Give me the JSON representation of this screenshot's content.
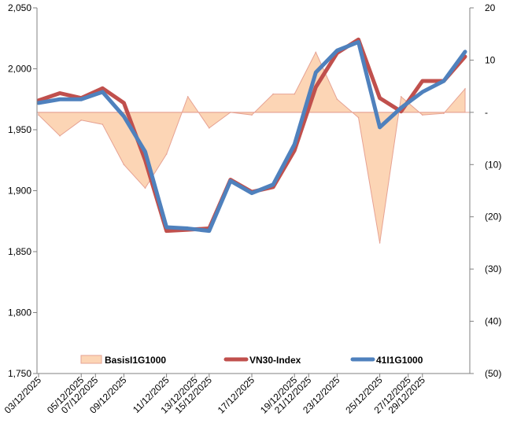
{
  "chart_data": {
    "type": "line",
    "x": [
      "03/12/2025",
      "04/12/2025",
      "05/12/2025",
      "08/12/2025",
      "09/12/2025",
      "10/12/2025",
      "11/12/2025",
      "12/12/2025",
      "15/12/2025",
      "16/12/2025",
      "17/12/2025",
      "18/12/2025",
      "19/12/2025",
      "22/12/2025",
      "23/12/2025",
      "24/12/2025",
      "25/12/2025",
      "26/12/2025",
      "29/12/2025",
      "30/12/2025",
      "31/12/2025"
    ],
    "x_ticks": [
      "03/12/2025",
      "05/12/2025",
      "07/12/2025",
      "09/12/2025",
      "11/12/2025",
      "13/12/2025",
      "15/12/2025",
      "17/12/2025",
      "19/12/2025",
      "21/12/2025",
      "23/12/2025",
      "25/12/2025",
      "27/12/2025",
      "29/12/2025"
    ],
    "y_left": {
      "ylim": [
        1750,
        2050
      ],
      "ticks": [
        1750,
        1800,
        1850,
        1900,
        1950,
        2000,
        2050
      ],
      "tick_labels": [
        "1,750",
        "1,800",
        "1,850",
        "1,900",
        "1,950",
        "2,000",
        "2,050"
      ]
    },
    "y_right": {
      "ylim": [
        -50,
        20
      ],
      "ticks": [
        -50,
        -40,
        -30,
        -20,
        -10,
        0,
        10,
        20
      ],
      "tick_labels": [
        "(50)",
        "(40)",
        "(30)",
        "(20)",
        "(10)",
        "-",
        "10",
        "20"
      ]
    },
    "series": [
      {
        "name": "BasisI1G1000",
        "kind": "area",
        "axis": "right",
        "color": "#fcd5b5",
        "edge": "#e6a293",
        "values": [
          -0.5,
          -4.5,
          -1.5,
          -2.3,
          -10,
          -14.5,
          -8,
          3,
          -3,
          0,
          -0.5,
          3.5,
          3.5,
          11.5,
          2.5,
          -1,
          -25,
          3,
          -0.5,
          -0.2,
          4.5
        ]
      },
      {
        "name": "VN30-Index",
        "kind": "line",
        "axis": "left",
        "color": "#c0504d",
        "values": [
          1974,
          1980,
          1976,
          1984,
          1972,
          1925,
          1867,
          1868,
          1869,
          1909,
          1899,
          1903,
          1933,
          1985,
          2013,
          2024,
          1976,
          1965,
          1990,
          1990,
          2010
        ]
      },
      {
        "name": "41I1G1000",
        "kind": "line",
        "axis": "left",
        "color": "#4f81bd",
        "values": [
          1972,
          1975,
          1975,
          1981,
          1961,
          1932,
          1870,
          1869,
          1867,
          1908,
          1898,
          1905,
          1938,
          1997,
          2015,
          2022,
          1952,
          1968,
          1981,
          1990,
          2014
        ]
      }
    ],
    "legend_position": "bottom",
    "grid": false,
    "title": "",
    "xlabel": "",
    "ylabel": ""
  }
}
